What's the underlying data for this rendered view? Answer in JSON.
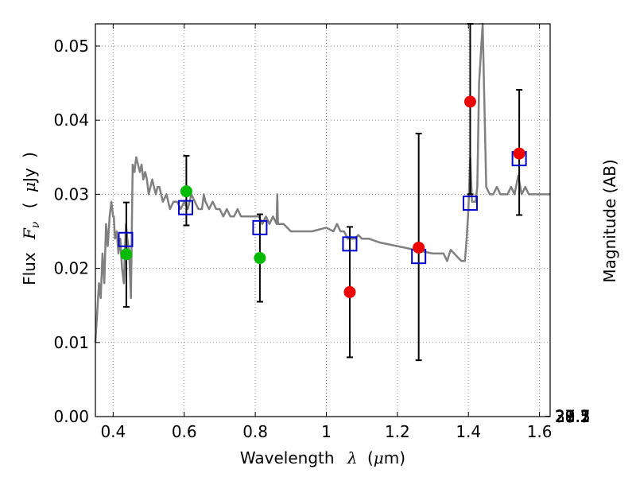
{
  "chart_data": {
    "type": "scatter",
    "title": "",
    "xlabel": "Wavelength",
    "xlabel_symbol": "λ",
    "xlabel_unit_open": "(",
    "xlabel_unit_mu": "μ",
    "xlabel_unit_rest": "m)",
    "ylabel": "Flux",
    "ylabel_symbol": "F",
    "ylabel_sub": "ν",
    "ylabel_unit_open": "(",
    "ylabel_unit_mu": "μ",
    "ylabel_unit_rest": "Jy",
    "ylabel_unit_close": ")",
    "ylabel_right": "Magnitude (AB)",
    "xlim": [
      0.35,
      1.63
    ],
    "ylim": [
      0.0,
      0.053
    ],
    "grid": true,
    "x_ticks": [
      {
        "value": 0.4,
        "label": "0.4"
      },
      {
        "value": 0.6,
        "label": "0.6"
      },
      {
        "value": 0.8,
        "label": "0.8"
      },
      {
        "value": 1.0,
        "label": "1"
      },
      {
        "value": 1.2,
        "label": "1.2"
      },
      {
        "value": 1.4,
        "label": "1.4"
      },
      {
        "value": 1.6,
        "label": "1.6"
      }
    ],
    "y_ticks": [
      {
        "value": 0.0,
        "label": "0.00"
      },
      {
        "value": 0.01,
        "label": "0.01"
      },
      {
        "value": 0.02,
        "label": "0.02"
      },
      {
        "value": 0.03,
        "label": "0.03"
      },
      {
        "value": 0.04,
        "label": "0.04"
      },
      {
        "value": 0.05,
        "label": "0.05"
      }
    ],
    "right_ticks": [
      {
        "value": 27.1,
        "label": "27.1"
      },
      {
        "value": 27.3,
        "label": "27.3"
      },
      {
        "value": 27.5,
        "label": "27.5"
      },
      {
        "value": 27.7,
        "label": "27.7"
      },
      {
        "value": 28.0,
        "label": "28"
      },
      {
        "value": 28.2,
        "label": "28.2"
      },
      {
        "value": 28.5,
        "label": "28.5"
      },
      {
        "value": 29.0,
        "label": "29"
      },
      {
        "value": 29.5,
        "label": "29.5"
      },
      {
        "value": 30.0,
        "label": "30"
      },
      {
        "value": 31.0,
        "label": "31"
      }
    ],
    "colors": {
      "sed": "#808080",
      "model": "#0000cc",
      "green": "#00bb00",
      "red": "#ee0000",
      "errorbar": "#000000",
      "grid": "#8c8c8c"
    },
    "sed_model": {
      "x": [
        0.35,
        0.36,
        0.365,
        0.37,
        0.375,
        0.38,
        0.385,
        0.39,
        0.395,
        0.4,
        0.402,
        0.405,
        0.41,
        0.415,
        0.42,
        0.425,
        0.43,
        0.433,
        0.436,
        0.44,
        0.445,
        0.45,
        0.455,
        0.46,
        0.462,
        0.465,
        0.47,
        0.475,
        0.48,
        0.485,
        0.49,
        0.495,
        0.5,
        0.505,
        0.51,
        0.515,
        0.52,
        0.525,
        0.53,
        0.54,
        0.55,
        0.56,
        0.57,
        0.58,
        0.59,
        0.6,
        0.61,
        0.62,
        0.63,
        0.64,
        0.65,
        0.655,
        0.66,
        0.67,
        0.68,
        0.69,
        0.7,
        0.71,
        0.72,
        0.73,
        0.74,
        0.75,
        0.76,
        0.77,
        0.78,
        0.79,
        0.8,
        0.81,
        0.82,
        0.83,
        0.84,
        0.85,
        0.86,
        0.862,
        0.864,
        0.87,
        0.88,
        0.9,
        0.92,
        0.94,
        0.95,
        0.96,
        1.0,
        1.02,
        1.03,
        1.04,
        1.05,
        1.06,
        1.07,
        1.08,
        1.09,
        1.1,
        1.12,
        1.15,
        1.2,
        1.25,
        1.3,
        1.33,
        1.34,
        1.35,
        1.36,
        1.37,
        1.38,
        1.39,
        1.395,
        1.4,
        1.405,
        1.41,
        1.42,
        1.425,
        1.43,
        1.44,
        1.45,
        1.46,
        1.47,
        1.48,
        1.49,
        1.5,
        1.51,
        1.52,
        1.53,
        1.54,
        1.55,
        1.56,
        1.57,
        1.58,
        1.6,
        1.63
      ],
      "y": [
        0.01,
        0.018,
        0.016,
        0.022,
        0.018,
        0.026,
        0.023,
        0.027,
        0.029,
        0.027,
        0.027,
        0.024,
        0.025,
        0.022,
        0.024,
        0.02,
        0.018,
        0.022,
        0.026,
        0.024,
        0.022,
        0.016,
        0.034,
        0.033,
        0.034,
        0.035,
        0.034,
        0.033,
        0.034,
        0.032,
        0.033,
        0.032,
        0.03,
        0.031,
        0.032,
        0.031,
        0.03,
        0.031,
        0.031,
        0.029,
        0.03,
        0.028,
        0.029,
        0.029,
        0.028,
        0.029,
        0.028,
        0.03,
        0.029,
        0.028,
        0.028,
        0.03,
        0.029,
        0.028,
        0.029,
        0.028,
        0.028,
        0.027,
        0.028,
        0.027,
        0.027,
        0.028,
        0.027,
        0.027,
        0.027,
        0.027,
        0.027,
        0.027,
        0.026,
        0.027,
        0.026,
        0.027,
        0.026,
        0.03,
        0.026,
        0.026,
        0.026,
        0.025,
        0.025,
        0.025,
        0.025,
        0.025,
        0.0255,
        0.025,
        0.026,
        0.025,
        0.025,
        0.024,
        0.024,
        0.024,
        0.0245,
        0.024,
        0.024,
        0.0235,
        0.023,
        0.0225,
        0.022,
        0.022,
        0.021,
        0.0225,
        0.022,
        0.0215,
        0.021,
        0.021,
        0.024,
        0.028,
        0.035,
        0.029,
        0.029,
        0.031,
        0.045,
        0.053,
        0.031,
        0.03,
        0.03,
        0.031,
        0.03,
        0.03,
        0.03,
        0.031,
        0.03,
        0.0325,
        0.03,
        0.031,
        0.03,
        0.03,
        0.03,
        0.03
      ]
    },
    "series": [
      {
        "name": "model-squares",
        "marker": "square",
        "points": [
          {
            "x": 0.435,
            "y": 0.0239
          },
          {
            "x": 0.604,
            "y": 0.0282
          },
          {
            "x": 0.813,
            "y": 0.0255
          },
          {
            "x": 1.066,
            "y": 0.0233
          },
          {
            "x": 1.26,
            "y": 0.0216
          },
          {
            "x": 1.405,
            "y": 0.0288
          },
          {
            "x": 1.543,
            "y": 0.0348
          }
        ]
      },
      {
        "name": "green-detections",
        "marker": "circle",
        "color_key": "green",
        "points": [
          {
            "x": 0.437,
            "y": 0.0219
          },
          {
            "x": 0.606,
            "y": 0.0304
          },
          {
            "x": 0.813,
            "y": 0.0214
          }
        ]
      },
      {
        "name": "red-detections",
        "marker": "circle",
        "color_key": "red",
        "points": [
          {
            "x": 1.066,
            "y": 0.0168
          },
          {
            "x": 1.26,
            "y": 0.0228
          },
          {
            "x": 1.405,
            "y": 0.0425
          },
          {
            "x": 1.543,
            "y": 0.0355
          }
        ]
      }
    ],
    "error_bars": [
      {
        "x": 0.437,
        "low": 0.0148,
        "high": 0.0289
      },
      {
        "x": 0.606,
        "low": 0.0258,
        "high": 0.0352
      },
      {
        "x": 0.813,
        "low": 0.0155,
        "high": 0.0273
      },
      {
        "x": 1.066,
        "low": 0.008,
        "high": 0.0256
      },
      {
        "x": 1.26,
        "low": 0.0076,
        "high": 0.0382
      },
      {
        "x": 1.405,
        "low": 0.03,
        "high": 0.053
      },
      {
        "x": 1.543,
        "low": 0.0272,
        "high": 0.0441
      }
    ]
  }
}
